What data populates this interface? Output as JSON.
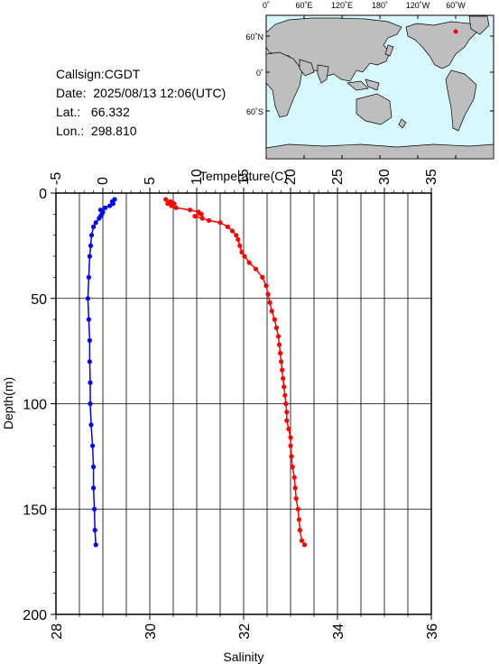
{
  "info": {
    "callsign": "Callsign:CGDT",
    "date": "Date:  2025/08/13 12:06(UTC)",
    "lat": "Lat.:   66.332",
    "lon": "Lon.:  298.810"
  },
  "map": {
    "top_ticks": [
      "0˚",
      "60˚E",
      "120˚E",
      "180˚",
      "120˚W",
      "60˚W"
    ],
    "side_ticks": [
      "60˚N",
      "0˚",
      "60˚S"
    ],
    "marker_color": "#ff0000",
    "ocean_color": "#d8f8ff",
    "land_color": "#bebebe"
  },
  "chart_data": {
    "type": "line",
    "xlabel_top": "Temperature(C)",
    "xlabel_bottom": "Salinity",
    "ylabel": "Depth(m)",
    "temperature_range": [
      -5,
      35
    ],
    "salinity_range": [
      28,
      36
    ],
    "depth_range": [
      0,
      200
    ],
    "temperature_ticks": [
      "-5",
      "0",
      "5",
      "10",
      "15",
      "20",
      "25",
      "30",
      "35"
    ],
    "salinity_ticks": [
      "28",
      "30",
      "32",
      "34",
      "36"
    ],
    "depth_ticks": [
      "0",
      "50",
      "100",
      "150",
      "200"
    ],
    "series": [
      {
        "name": "Temperature",
        "color": "#ff0000",
        "axis": "temperature",
        "depth": [
          3,
          4,
          5,
          5,
          6,
          7,
          8,
          9,
          10,
          11,
          12,
          13,
          14,
          16,
          18,
          20,
          22,
          25,
          28,
          30,
          33,
          36,
          40,
          44,
          48,
          52,
          56,
          60,
          64,
          68,
          72,
          76,
          80,
          84,
          88,
          92,
          96,
          100,
          104,
          108,
          112,
          116,
          120,
          125,
          130,
          135,
          140,
          145,
          150,
          155,
          160,
          165,
          167
        ],
        "values": [
          6.7,
          7.2,
          6.9,
          7.6,
          7.3,
          7.8,
          9.3,
          10.2,
          10.5,
          9.8,
          10.6,
          11.3,
          12.5,
          13.3,
          13.8,
          14.2,
          14.4,
          14.6,
          14.8,
          15.1,
          15.6,
          16.3,
          17.0,
          17.4,
          17.6,
          17.8,
          18.0,
          18.3,
          18.5,
          18.7,
          18.8,
          18.9,
          19.0,
          19.1,
          19.2,
          19.3,
          19.4,
          19.5,
          19.6,
          19.6,
          19.8,
          20.0,
          20.0,
          20.1,
          20.2,
          20.4,
          20.5,
          20.6,
          20.8,
          20.9,
          21.0,
          21.2,
          21.5
        ]
      },
      {
        "name": "Salinity",
        "color": "#0000ff",
        "axis": "salinity",
        "depth": [
          3,
          4,
          5,
          6,
          7,
          8,
          9,
          10,
          11,
          12,
          14,
          16,
          20,
          25,
          30,
          40,
          50,
          60,
          70,
          80,
          90,
          100,
          110,
          120,
          130,
          140,
          150,
          160,
          167
        ],
        "values": [
          29.25,
          29.2,
          29.22,
          29.15,
          29.05,
          28.95,
          29.0,
          28.98,
          28.95,
          28.92,
          28.85,
          28.8,
          28.76,
          28.74,
          28.72,
          28.7,
          28.68,
          28.7,
          28.72,
          28.72,
          28.73,
          28.73,
          28.75,
          28.78,
          28.8,
          28.8,
          28.82,
          28.83,
          28.85
        ]
      }
    ]
  }
}
